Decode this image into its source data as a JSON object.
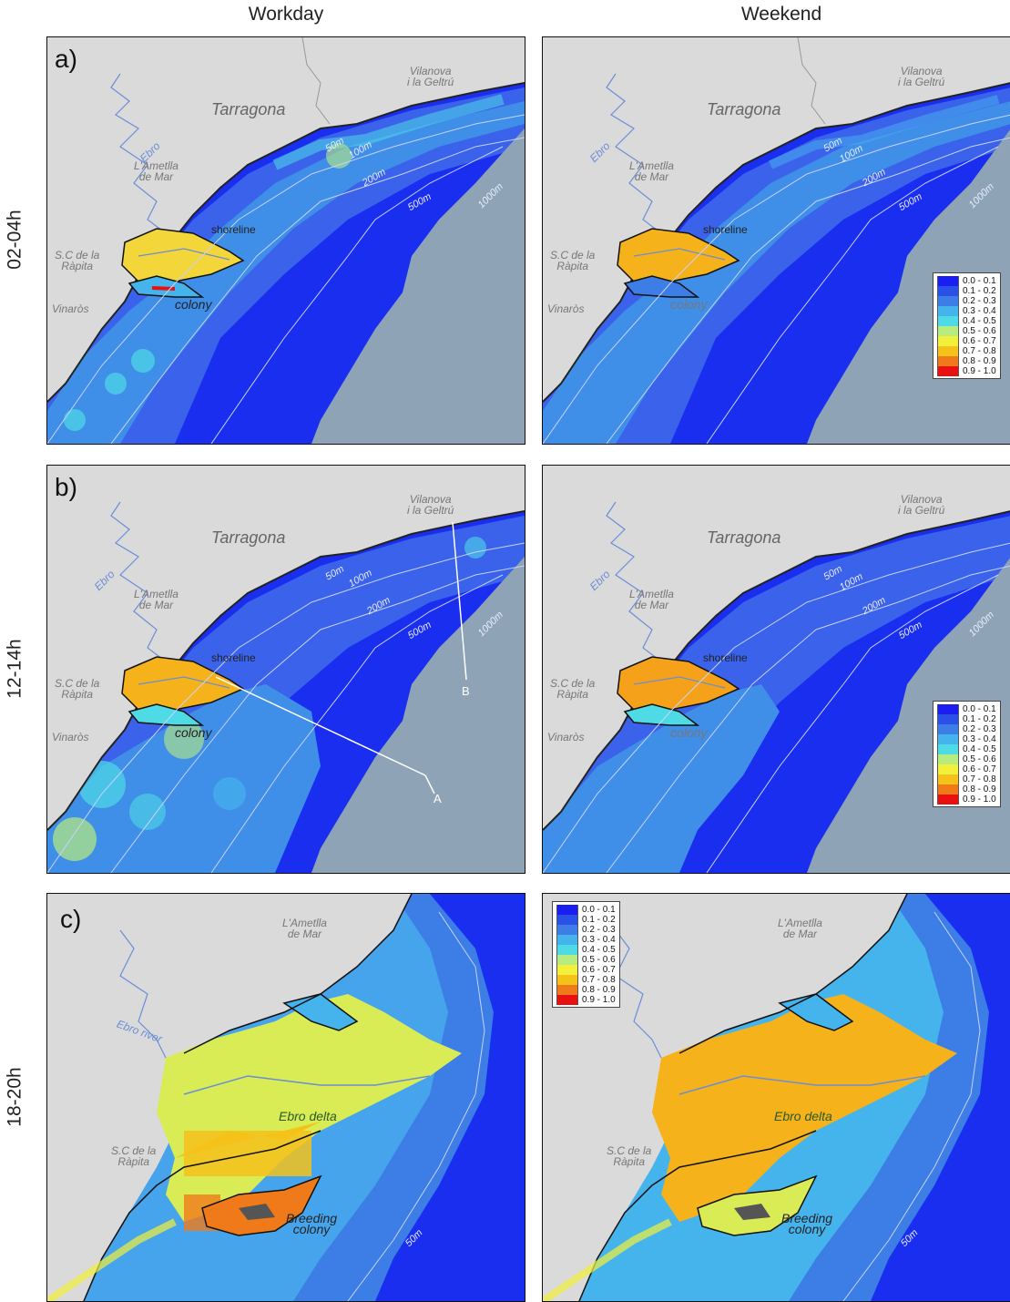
{
  "columns": {
    "workday": "Workday",
    "weekend": "Weekend"
  },
  "rows": [
    {
      "time": "02-04h",
      "label": "a)"
    },
    {
      "time": "12-14h",
      "label": "b)"
    },
    {
      "time": "18-20h",
      "label": "c)"
    }
  ],
  "places": {
    "vilanova": "Vilanova\ni la Geltrú",
    "tarragona": "Tarragona",
    "ametlla": "L'Ametlla\nde Mar",
    "ebro": "Ebro",
    "ebro_river": "Ebro river",
    "rapita": "S.C de la\nRàpita",
    "vinaros": "Vinaròs",
    "shoreline": "shoreline",
    "colony": "colony",
    "ebro_delta": "Ebro delta",
    "breeding_colony": "Breeding\ncolony"
  },
  "contours": {
    "c50": "50m",
    "c100": "100m",
    "c200": "200m",
    "c500": "500m",
    "c1000": "1000m"
  },
  "transects": {
    "a": "A",
    "b": "B"
  },
  "legend": {
    "classes": [
      "0.0 - 0.1",
      "0.1 - 0.2",
      "0.2 - 0.3",
      "0.3 - 0.4",
      "0.4 - 0.5",
      "0.5 - 0.6",
      "0.6 - 0.7",
      "0.7 - 0.8",
      "0.8 - 0.9",
      "0.9 - 1.0"
    ],
    "colors": [
      "#1a1ef0",
      "#2b50e8",
      "#3c7ee6",
      "#45b4ec",
      "#4fdbe6",
      "#b9ec7e",
      "#f2f03a",
      "#f5c21a",
      "#f07a1a",
      "#e81010"
    ]
  },
  "colors": {
    "land": "#dadada",
    "deep_grey": "#8ea4b6",
    "sea": "#1a2ef0"
  }
}
